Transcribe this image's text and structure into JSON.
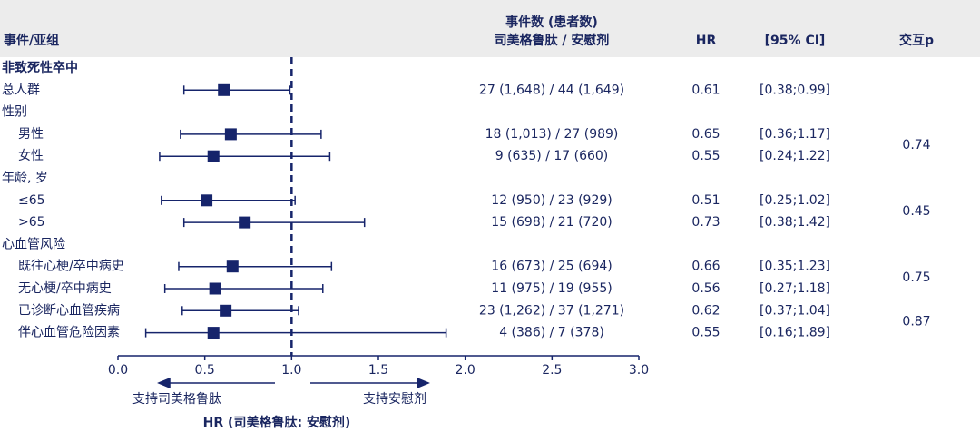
{
  "chart_data": {
    "type": "forest",
    "header": {
      "subgroup": "事件/亚组",
      "events_title": "事件数 (患者数)",
      "events_subtitle": "司美格鲁肽 / 安慰剂",
      "hr": "HR",
      "ci": "[95% CI]",
      "p": "交互p"
    },
    "rows": [
      "非致死性卒中",
      "总人群",
      "性别",
      "男性",
      "女性",
      "年龄, 岁",
      "≤65",
      ">65",
      "心血管风险",
      "既往心梗/卒中病史",
      "无心梗/卒中病史",
      "已诊断心血管疾病",
      "伴心血管危险因素"
    ],
    "values": [
      null,
      0.61,
      null,
      0.65,
      0.55,
      null,
      0.51,
      0.73,
      null,
      0.66,
      0.56,
      0.62,
      0.55
    ],
    "lower": [
      null,
      0.38,
      null,
      0.36,
      0.24,
      null,
      0.25,
      0.38,
      null,
      0.35,
      0.27,
      0.37,
      0.16
    ],
    "upper": [
      null,
      0.99,
      null,
      1.17,
      1.22,
      null,
      1.02,
      1.42,
      null,
      1.23,
      1.18,
      1.04,
      1.89
    ],
    "events": [
      null,
      "27 (1,648) / 44 (1,649)",
      null,
      "18 (1,013) / 27 (989)",
      "9 (635) / 17 (660)",
      null,
      "12 (950) / 23 (929)",
      "15 (698) / 21 (720)",
      null,
      "16 (673) / 25 (694)",
      "11 (975) / 19 (955)",
      "23 (1,262) / 37 (1,271)",
      "4 (386) / 7 (378)"
    ],
    "ci_labels": [
      null,
      "[0.38;0.99]",
      null,
      "[0.36;1.17]",
      "[0.24;1.22]",
      null,
      "[0.25;1.02]",
      "[0.38;1.42]",
      null,
      "[0.35;1.23]",
      "[0.27;1.18]",
      "[0.37;1.04]",
      "[0.16;1.89]"
    ],
    "interaction_p": [
      null,
      null,
      null,
      0.74,
      null,
      null,
      0.45,
      null,
      null,
      0.75,
      null,
      0.87,
      null
    ],
    "xlim": [
      0,
      3
    ],
    "xticks": [
      {
        "value": 0,
        "label": "0.0"
      },
      0.5,
      {
        "value": 1,
        "label": "1.0"
      },
      1.5,
      {
        "value": 2,
        "label": "2.0"
      },
      2.5,
      {
        "value": 3,
        "label": "3.0"
      }
    ],
    "reference": 1,
    "left_arrow": "支持司美格鲁肽",
    "right_arrow": "支持安慰剂",
    "x_label": "HR (司美格鲁肽: 安慰剂)",
    "color": "#16246b"
  }
}
